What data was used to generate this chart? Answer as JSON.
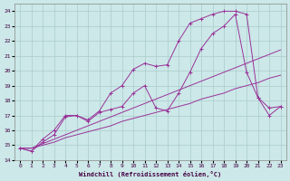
{
  "xlabel": "Windchill (Refroidissement éolien,°C)",
  "background_color": "#cce8e8",
  "grid_color": "#aacccc",
  "line_color": "#993399",
  "xlim": [
    -0.5,
    23.5
  ],
  "ylim": [
    14,
    24.5
  ],
  "xticks": [
    0,
    1,
    2,
    3,
    4,
    5,
    6,
    7,
    8,
    9,
    10,
    11,
    12,
    13,
    14,
    15,
    16,
    17,
    18,
    19,
    20,
    21,
    22,
    23
  ],
  "yticks": [
    14,
    15,
    16,
    17,
    18,
    19,
    20,
    21,
    22,
    23,
    24
  ],
  "series": [
    {
      "x": [
        0,
        1,
        2,
        3,
        4,
        5,
        6,
        7,
        8,
        9,
        10,
        11,
        12,
        13,
        14,
        15,
        16,
        17,
        18,
        19,
        20,
        21,
        22,
        23
      ],
      "y": [
        14.8,
        14.8,
        15.0,
        15.2,
        15.5,
        15.7,
        15.9,
        16.1,
        16.3,
        16.6,
        16.8,
        17.0,
        17.2,
        17.4,
        17.6,
        17.8,
        18.1,
        18.3,
        18.5,
        18.8,
        19.0,
        19.2,
        19.5,
        19.7
      ],
      "marker": false
    },
    {
      "x": [
        0,
        1,
        2,
        3,
        4,
        5,
        6,
        7,
        8,
        9,
        10,
        11,
        12,
        13,
        14,
        15,
        16,
        17,
        18,
        19,
        20,
        21,
        22,
        23
      ],
      "y": [
        14.8,
        14.8,
        15.1,
        15.4,
        15.7,
        16.0,
        16.3,
        16.6,
        16.9,
        17.2,
        17.5,
        17.8,
        18.1,
        18.4,
        18.7,
        19.0,
        19.3,
        19.6,
        19.9,
        20.2,
        20.5,
        20.8,
        21.1,
        21.4
      ],
      "marker": false
    },
    {
      "x": [
        0,
        1,
        2,
        3,
        4,
        5,
        6,
        7,
        8,
        9,
        10,
        11,
        12,
        13,
        14,
        15,
        16,
        17,
        18,
        19,
        20,
        21,
        22,
        23
      ],
      "y": [
        14.8,
        14.6,
        15.2,
        15.7,
        16.9,
        17.0,
        16.6,
        17.2,
        17.4,
        17.6,
        18.5,
        19.0,
        17.5,
        17.3,
        18.5,
        19.9,
        21.5,
        22.5,
        23.0,
        23.8,
        19.9,
        18.2,
        17.0,
        17.6
      ],
      "marker": true
    },
    {
      "x": [
        0,
        1,
        2,
        3,
        4,
        5,
        6,
        7,
        8,
        9,
        10,
        11,
        12,
        13,
        14,
        15,
        16,
        17,
        18,
        19,
        20,
        21,
        22,
        23
      ],
      "y": [
        14.8,
        14.6,
        15.4,
        16.0,
        17.0,
        17.0,
        16.7,
        17.3,
        18.5,
        19.0,
        20.1,
        20.5,
        20.3,
        20.4,
        22.0,
        23.2,
        23.5,
        23.8,
        24.0,
        24.0,
        23.8,
        18.2,
        17.5,
        17.6
      ],
      "marker": true
    }
  ]
}
